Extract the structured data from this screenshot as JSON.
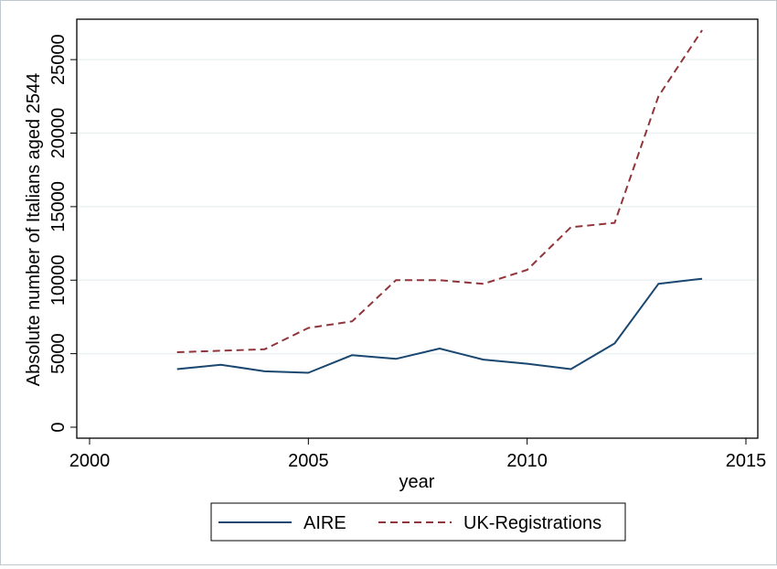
{
  "chart_data": {
    "type": "line",
    "xlabel": "year",
    "ylabel": "Absolute number of Italians aged 2544",
    "xlim": [
      2000,
      2015
    ],
    "ylim": [
      0,
      27000
    ],
    "x_ticks": [
      2000,
      2005,
      2010,
      2015
    ],
    "y_ticks": [
      0,
      5000,
      10000,
      15000,
      20000,
      25000
    ],
    "grid": true,
    "legend_position": "bottom",
    "x": [
      2002,
      2003,
      2004,
      2005,
      2006,
      2007,
      2008,
      2009,
      2010,
      2011,
      2012,
      2013,
      2014
    ],
    "series": [
      {
        "name": "AIRE",
        "color": "#1a476f",
        "dash": "solid",
        "values": [
          3950,
          4250,
          3800,
          3700,
          4900,
          4650,
          5350,
          4600,
          4320,
          3950,
          5700,
          9750,
          10100
        ]
      },
      {
        "name": "UK-Registrations",
        "color": "#90353b",
        "dash": "dashed",
        "values": [
          5100,
          5200,
          5300,
          6750,
          7200,
          10000,
          10000,
          9750,
          10700,
          13600,
          13900,
          22500,
          27000
        ]
      }
    ]
  }
}
